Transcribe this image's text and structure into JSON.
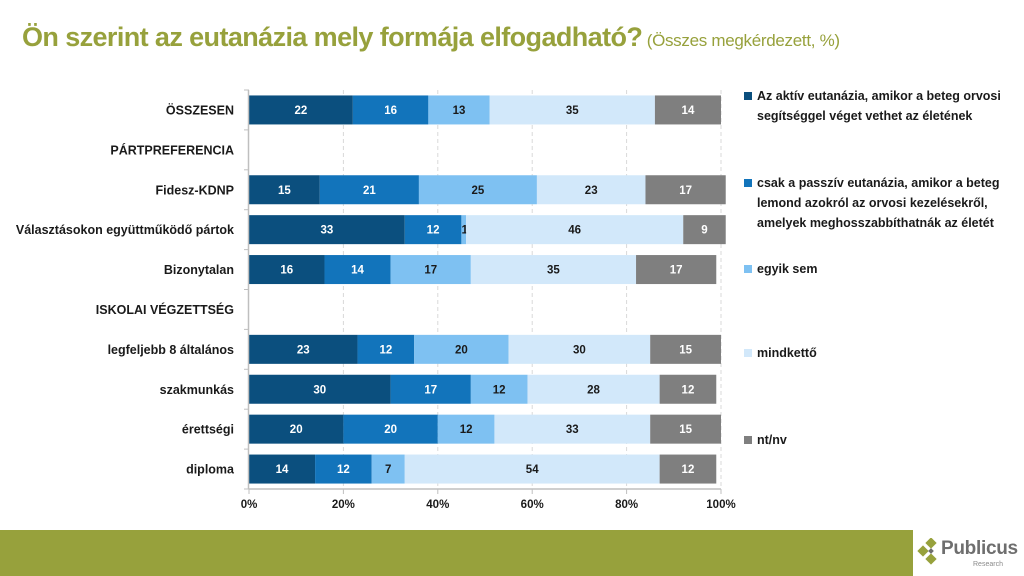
{
  "title": {
    "main": "Ön szerint az eutanázia mely formája elfogadható?",
    "sub": "(Összes megkérdezett, %)"
  },
  "logo": {
    "name": "Publicus",
    "sub": "Research"
  },
  "chart_data": {
    "type": "bar",
    "orientation": "horizontal",
    "stacked": "percent",
    "title": "Ön szerint az eutanázia mely formája elfogadható?",
    "subtitle": "(Összes megkérdezett, %)",
    "categories": [
      "ÖSSZESEN",
      "PÁRTPREFERENCIA",
      "Fidesz-KDNP",
      "Választásokon együttműködő pártok",
      "Bizonytalan",
      "ISKOLAI VÉGZETTSÉG",
      "legfeljebb 8 általános",
      "szakmunkás",
      "érettségi",
      "diploma"
    ],
    "series": [
      {
        "name": "Az aktív eutanázia, amikor a beteg orvosi segítséggel véget vethet az életének",
        "color": "#0b4f7e",
        "label_color": "#ffffff",
        "values": [
          22,
          null,
          15,
          33,
          16,
          null,
          23,
          30,
          20,
          14
        ]
      },
      {
        "name": "csak a passzív eutanázia, amikor a beteg lemond azokról az orvosi kezelésekről, amelyek meghosszabbíthatnák az életét",
        "color": "#1274bb",
        "label_color": "#ffffff",
        "values": [
          16,
          null,
          21,
          12,
          14,
          null,
          12,
          17,
          20,
          12
        ]
      },
      {
        "name": "egyik sem",
        "color": "#7ec1f2",
        "label_color": "#1a1a1a",
        "values": [
          13,
          null,
          25,
          1,
          17,
          null,
          20,
          12,
          12,
          7
        ]
      },
      {
        "name": "mindkettő",
        "color": "#d2e8fa",
        "label_color": "#1a1a1a",
        "values": [
          35,
          null,
          23,
          46,
          35,
          null,
          30,
          28,
          33,
          54
        ]
      },
      {
        "name": "nt/nv",
        "color": "#7f7f7f",
        "label_color": "#ffffff",
        "values": [
          14,
          null,
          17,
          9,
          17,
          null,
          15,
          12,
          15,
          12
        ]
      }
    ],
    "xlim": [
      0,
      100
    ],
    "xticks": [
      "0%",
      "20%",
      "40%",
      "60%",
      "80%",
      "100%"
    ],
    "xtick_values": [
      0,
      20,
      40,
      60,
      80,
      100
    ],
    "grid": "vertical dashed",
    "legend": "right"
  }
}
